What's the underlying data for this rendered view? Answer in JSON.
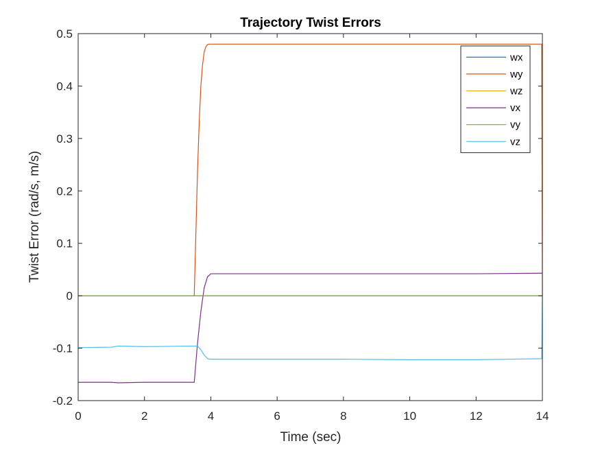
{
  "chart_data": {
    "type": "line",
    "title": "Trajectory Twist Errors",
    "xlabel": "Time (sec)",
    "ylabel": "Twist Error (rad/s, m/s)",
    "xlim": [
      0,
      14
    ],
    "ylim": [
      -0.2,
      0.5
    ],
    "xticks": [
      0,
      2,
      4,
      6,
      8,
      10,
      12,
      14
    ],
    "xtick_labels": [
      "0",
      "2",
      "4",
      "6",
      "8",
      "10",
      "12",
      "14"
    ],
    "yticks": [
      -0.2,
      -0.1,
      0,
      0.1,
      0.2,
      0.3,
      0.4,
      0.5
    ],
    "ytick_labels": [
      "-0.2",
      "-0.1",
      "0",
      "0.1",
      "0.2",
      "0.3",
      "0.4",
      "0.5"
    ],
    "grid": false,
    "legend_position": "top-right",
    "series": [
      {
        "name": "wx",
        "color": "#0072BD",
        "x": [
          0,
          14
        ],
        "y": [
          0,
          0
        ]
      },
      {
        "name": "wy",
        "color": "#D95319",
        "x": [
          0,
          3.5,
          3.55,
          3.6,
          3.65,
          3.7,
          3.75,
          3.8,
          3.85,
          3.9,
          3.95,
          4.0,
          13.98,
          14.0
        ],
        "y": [
          0,
          0,
          0.12,
          0.24,
          0.33,
          0.4,
          0.44,
          0.465,
          0.475,
          0.479,
          0.48,
          0.48,
          0.48,
          0
        ]
      },
      {
        "name": "wz",
        "color": "#EDB120",
        "x": [
          0,
          14
        ],
        "y": [
          0,
          0
        ]
      },
      {
        "name": "vx",
        "color": "#7E2F8E",
        "x": [
          0,
          1.0,
          1.2,
          2.0,
          3.5,
          3.6,
          3.7,
          3.8,
          3.9,
          4.0,
          6.0,
          8.0,
          10.0,
          12.0,
          14.0
        ],
        "y": [
          -0.165,
          -0.165,
          -0.166,
          -0.165,
          -0.165,
          -0.09,
          -0.03,
          0.015,
          0.036,
          0.042,
          0.042,
          0.042,
          0.042,
          0.042,
          0.043
        ]
      },
      {
        "name": "vy",
        "color": "#77AC30",
        "x": [
          0,
          14
        ],
        "y": [
          0,
          0
        ]
      },
      {
        "name": "vz",
        "color": "#4DBEEE",
        "x": [
          0,
          1.0,
          1.2,
          2.0,
          3.5,
          3.6,
          3.7,
          3.8,
          3.9,
          4.0,
          6.0,
          8.0,
          10.0,
          12.0,
          13.98,
          14.0
        ],
        "y": [
          -0.099,
          -0.098,
          -0.096,
          -0.097,
          -0.096,
          -0.096,
          -0.103,
          -0.113,
          -0.12,
          -0.121,
          -0.121,
          -0.121,
          -0.122,
          -0.122,
          -0.12,
          0
        ]
      }
    ]
  }
}
